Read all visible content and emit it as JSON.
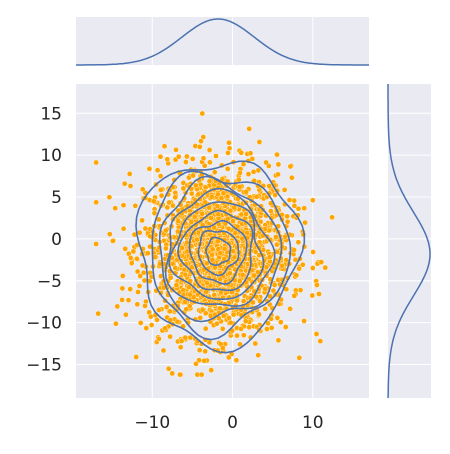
{
  "chart_data": {
    "type": "scatter",
    "subtype": "joint plot with bivariate KDE contours and marginal KDE curves",
    "title": "",
    "xlabel": "",
    "ylabel": "",
    "xlim": [
      -19.5,
      17
    ],
    "ylim": [
      -19,
      18.5
    ],
    "x_ticks": [
      -10,
      0,
      10
    ],
    "x_tick_labels": [
      "−10",
      "0",
      "10"
    ],
    "y_ticks": [
      -15,
      -10,
      -5,
      0,
      5,
      10,
      15
    ],
    "y_tick_labels": [
      "−15",
      "−10",
      "−5",
      "0",
      "5",
      "10",
      "15"
    ],
    "grid": true,
    "legend": "none",
    "colors": {
      "axes_background": "#eaeaf2",
      "grid": "#ffffff",
      "scatter_fill": "#ffa500",
      "scatter_edge": "#ffffff",
      "contour": "#4c72b0",
      "kde_line": "#4c72b0",
      "tick_text": "#262626"
    },
    "scatter_summary": {
      "approx_points": 2000,
      "center": [
        -1.8,
        -1.4
      ],
      "std_x": 4.5,
      "std_y": 5.0,
      "x_range": [
        -17,
        14.5
      ],
      "y_range": [
        -16.2,
        15.7
      ]
    },
    "contour_levels": [
      {
        "center": [
          -1.8,
          -1.5
        ],
        "radius_x": 10.0,
        "radius_y": 11.0
      },
      {
        "center": [
          -1.8,
          -1.5
        ],
        "radius_x": 8.6,
        "radius_y": 9.4
      },
      {
        "center": [
          -1.8,
          -1.5
        ],
        "radius_x": 7.5,
        "radius_y": 8.1
      },
      {
        "center": [
          -1.8,
          -1.5
        ],
        "radius_x": 6.5,
        "radius_y": 6.9
      },
      {
        "center": [
          -1.8,
          -1.5
        ],
        "radius_x": 5.5,
        "radius_y": 5.8
      },
      {
        "center": [
          -1.8,
          -1.5
        ],
        "radius_x": 4.5,
        "radius_y": 4.7
      },
      {
        "center": [
          -1.8,
          -1.5
        ],
        "radius_x": 3.5,
        "radius_y": 3.6
      },
      {
        "center": [
          -1.8,
          -1.5
        ],
        "radius_x": 2.5,
        "radius_y": 2.6
      },
      {
        "center": [
          -1.8,
          -1.5
        ],
        "radius_x": 1.5,
        "radius_y": 1.6
      }
    ],
    "marginal_x": {
      "type": "kde",
      "peak_x": -1.8,
      "std": 4.5
    },
    "marginal_y": {
      "type": "kde",
      "peak_y": -1.8,
      "std": 5.0
    }
  }
}
